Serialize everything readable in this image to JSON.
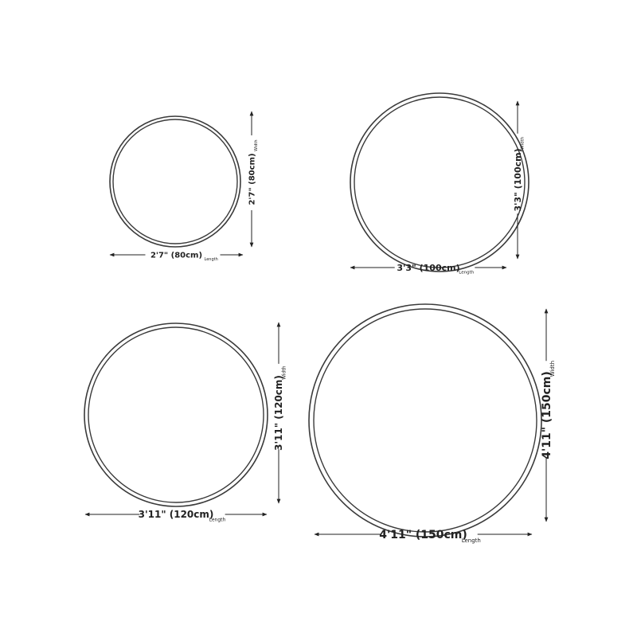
{
  "colors": {
    "ring": "#3a3a3a",
    "arrow": "#222222"
  },
  "rugs": [
    {
      "size_label": "2'7\" (80cm)",
      "length_word": "Length",
      "width_word": "Width",
      "diameter_cm": 80
    },
    {
      "size_label": "3'3\" (100cm)",
      "length_word": "Length",
      "width_word": "Width",
      "diameter_cm": 100
    },
    {
      "size_label": "3'11\" (120cm)",
      "length_word": "Length",
      "width_word": "Width",
      "diameter_cm": 120
    },
    {
      "size_label": "4'11\" (150cm)",
      "length_word": "Length",
      "width_word": "Width",
      "diameter_cm": 150
    }
  ]
}
